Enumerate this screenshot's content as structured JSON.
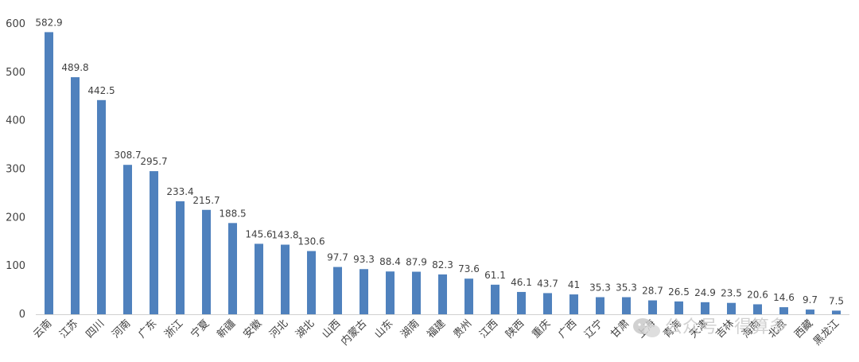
{
  "chart_data": {
    "type": "bar",
    "title": "",
    "xlabel": "",
    "ylabel": "",
    "ylim": [
      0,
      600
    ],
    "yticks": [
      0,
      100,
      200,
      300,
      400,
      500,
      600
    ],
    "grid": false,
    "bar_color": "#4f81bd",
    "categories": [
      "云南",
      "江苏",
      "四川",
      "河南",
      "广东",
      "浙江",
      "宁夏",
      "新疆",
      "安徽",
      "河北",
      "湖北",
      "山西",
      "内蒙古",
      "山东",
      "湖南",
      "福建",
      "贵州",
      "江西",
      "陕西",
      "重庆",
      "广西",
      "辽宁",
      "甘肃",
      "上海",
      "青海",
      "天津",
      "吉林",
      "海南",
      "北京",
      "西藏",
      "黑龙江"
    ],
    "values": [
      582.9,
      489.8,
      442.5,
      308.7,
      295.7,
      233.4,
      215.7,
      188.5,
      145.6,
      143.8,
      130.6,
      97.7,
      93.3,
      88.4,
      87.9,
      82.3,
      73.6,
      61.1,
      46.1,
      43.7,
      41,
      35.3,
      35.3,
      28.7,
      26.5,
      24.9,
      23.5,
      20.6,
      14.6,
      9.7,
      7.5
    ],
    "data_labels": [
      "582.9",
      "489.8",
      "442.5",
      "308.7",
      "295.7",
      "233.4",
      "215.7",
      "188.5",
      "145.6",
      "143.8",
      "130.6",
      "97.7",
      "93.3",
      "88.4",
      "87.9",
      "82.3",
      "73.6",
      "61.1",
      "46.1",
      "43.7",
      "41",
      "35.3",
      "35.3",
      "28.7",
      "26.5",
      "24.9",
      "23.5",
      "20.6",
      "14.6",
      "9.7",
      "7.5"
    ]
  },
  "watermark": {
    "icon": "wechat-icon",
    "text": "公众号 · 得算多"
  }
}
